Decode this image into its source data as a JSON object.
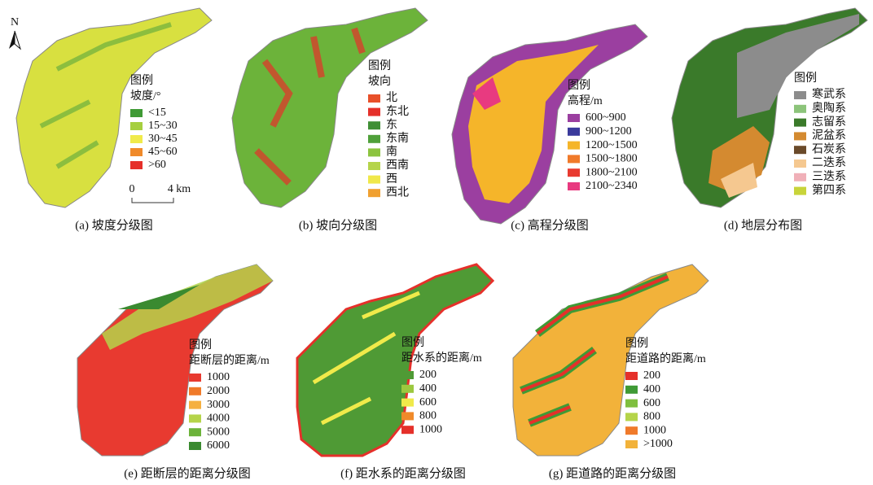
{
  "north": "N",
  "panels": [
    {
      "caption": "(a) 坡度分级图",
      "legend": {
        "title": "图例",
        "subtitle": "坡度/°",
        "items": [
          {
            "label": "<15",
            "color": "#3f9a35"
          },
          {
            "label": "15~30",
            "color": "#a6cf3f"
          },
          {
            "label": "30~45",
            "color": "#f0ea4a"
          },
          {
            "label": "45~60",
            "color": "#f08a2a"
          },
          {
            "label": ">60",
            "color": "#e5302a"
          }
        ]
      },
      "scale": {
        "start": "0",
        "end": "4 km"
      }
    },
    {
      "caption": "(b) 坡向分级图",
      "legend": {
        "title": "图例",
        "subtitle": "坡向",
        "items": [
          {
            "label": "北",
            "color": "#e8502a"
          },
          {
            "label": "东北",
            "color": "#e5302a"
          },
          {
            "label": "东",
            "color": "#3f8f35"
          },
          {
            "label": "东南",
            "color": "#4fa03a"
          },
          {
            "label": "南",
            "color": "#8cc43f"
          },
          {
            "label": "西南",
            "color": "#b5d44a"
          },
          {
            "label": "西",
            "color": "#f0e84a"
          },
          {
            "label": "西北",
            "color": "#f0a030"
          }
        ]
      }
    },
    {
      "caption": "(c) 高程分级图",
      "legend": {
        "title": "图例",
        "subtitle": "高程/m",
        "items": [
          {
            "label": "600~900",
            "color": "#9b3fa0"
          },
          {
            "label": "900~1200",
            "color": "#3a3a9c"
          },
          {
            "label": "1200~1500",
            "color": "#f5b52a"
          },
          {
            "label": "1500~1800",
            "color": "#f07a2a"
          },
          {
            "label": "1800~2100",
            "color": "#e83a30"
          },
          {
            "label": "2100~2340",
            "color": "#e83a80"
          }
        ]
      }
    },
    {
      "caption": "(d) 地层分布图",
      "legend": {
        "title": "图例",
        "items": [
          {
            "label": "寒武系",
            "color": "#8c8c8c"
          },
          {
            "label": "奥陶系",
            "color": "#8cc47a"
          },
          {
            "label": "志留系",
            "color": "#3a7a2a"
          },
          {
            "label": "泥盆系",
            "color": "#d48a30"
          },
          {
            "label": "石炭系",
            "color": "#6a4a2a"
          },
          {
            "label": "二迭系",
            "color": "#f5c890"
          },
          {
            "label": "三迭系",
            "color": "#f0b0b8"
          },
          {
            "label": "第四系",
            "color": "#c8d43a"
          }
        ]
      }
    },
    {
      "caption": "(e) 距断层的距离分级图",
      "legend": {
        "title": "图例",
        "subtitle": "距断层的距离/m",
        "items": [
          {
            "label": "1000",
            "color": "#e83a30"
          },
          {
            "label": "2000",
            "color": "#f07a2a"
          },
          {
            "label": "3000",
            "color": "#f5b040"
          },
          {
            "label": "4000",
            "color": "#b5d44a"
          },
          {
            "label": "5000",
            "color": "#6cb33a"
          },
          {
            "label": "6000",
            "color": "#3a8a30"
          }
        ]
      }
    },
    {
      "caption": "(f) 距水系的距离分级图",
      "legend": {
        "title": "图例",
        "subtitle": "距水系的距离/m",
        "items": [
          {
            "label": "200",
            "color": "#4f9a35"
          },
          {
            "label": "400",
            "color": "#9cc83f"
          },
          {
            "label": "600",
            "color": "#f0ea4a"
          },
          {
            "label": "800",
            "color": "#f08a2a"
          },
          {
            "label": "1000",
            "color": "#e5302a"
          }
        ]
      }
    },
    {
      "caption": "(g) 距道路的距离分级图",
      "legend": {
        "title": "图例",
        "subtitle": "距道路的距离/m",
        "items": [
          {
            "label": "200",
            "color": "#e5302a"
          },
          {
            "label": "400",
            "color": "#3f9a35"
          },
          {
            "label": "600",
            "color": "#7fbf3f"
          },
          {
            "label": "800",
            "color": "#b5d44a"
          },
          {
            "label": "1000",
            "color": "#f07a2a"
          },
          {
            "label": ">1000",
            "color": "#f2b23a"
          }
        ]
      }
    }
  ]
}
